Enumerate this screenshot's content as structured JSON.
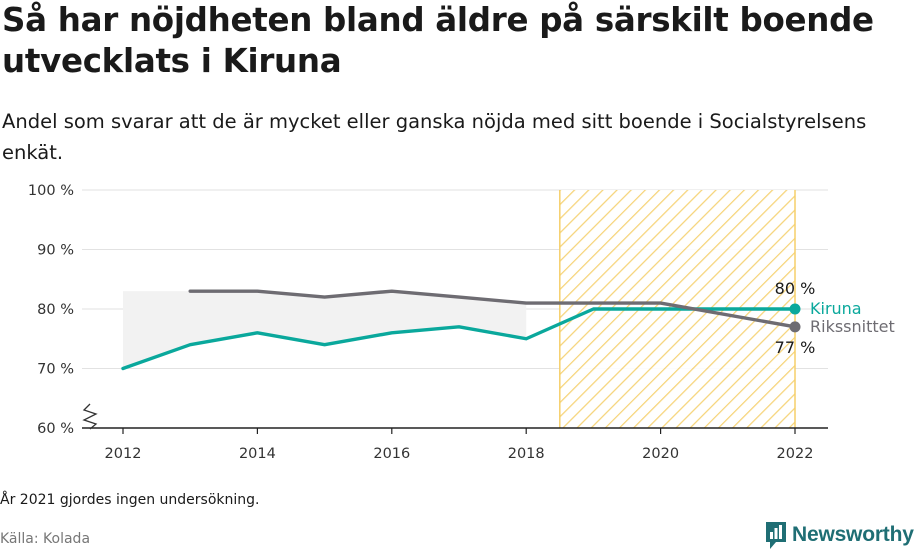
{
  "title": "Så har nöjdheten bland äldre på särskilt boende utvecklats i Kiruna",
  "subtitle": "Andel som svarar att de är mycket eller ganska nöjda med sitt boende i Socialstyrelsens enkät.",
  "note": "År 2021 gjordes ingen undersökning.",
  "source": "Källa: Kolada",
  "brand": {
    "name": "Newsworthy",
    "icon": "newsworthy-logo-icon"
  },
  "colors": {
    "kiruna": "#0aa89c",
    "riks": "#6e6c72",
    "highlight": "#f5cf6a",
    "grid": "#e2e2e2",
    "band": "#f2f2f2"
  },
  "chart_data": {
    "type": "line",
    "x_ticks": [
      2012,
      2014,
      2016,
      2018,
      2020,
      2022
    ],
    "y_ticks": [
      60,
      70,
      80,
      90,
      100
    ],
    "y_tick_labels": [
      "60 %",
      "70 %",
      "80 %",
      "90 %",
      "100 %"
    ],
    "xlim": [
      2011.5,
      2022.5
    ],
    "ylim": [
      60,
      100
    ],
    "y_axis_break": true,
    "grid": true,
    "highlight_range": [
      2018.5,
      2022
    ],
    "series": [
      {
        "name": "Kiruna",
        "color": "#0aa89c",
        "x": [
          2012,
          2013,
          2014,
          2015,
          2016,
          2017,
          2018,
          2019,
          2020,
          2022
        ],
        "y": [
          70,
          74,
          76,
          74,
          76,
          77,
          75,
          80,
          80,
          80
        ],
        "end_label": "80 %"
      },
      {
        "name": "Rikssnittet",
        "color": "#6e6c72",
        "x": [
          2013,
          2014,
          2015,
          2016,
          2017,
          2018,
          2019,
          2020,
          2022
        ],
        "y": [
          83,
          83,
          82,
          83,
          82,
          81,
          81,
          81,
          77
        ],
        "end_label": "77 %"
      }
    ]
  }
}
